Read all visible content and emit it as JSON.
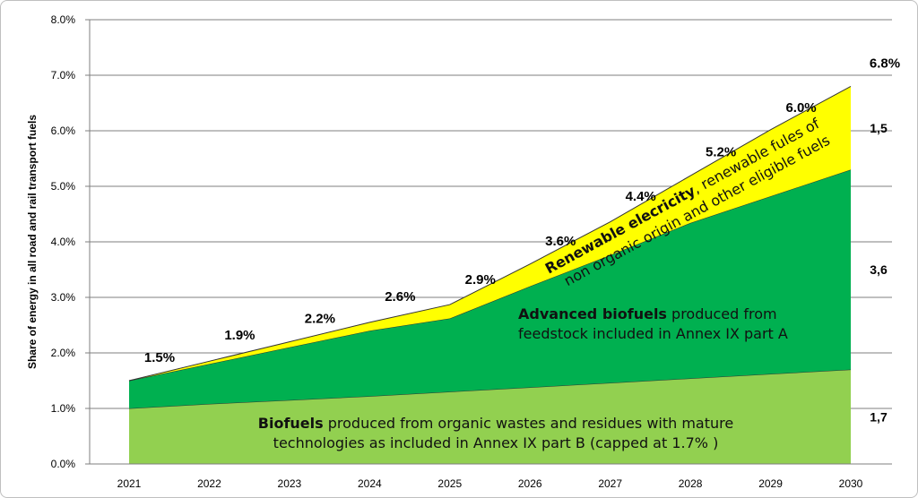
{
  "chart_data": {
    "type": "area",
    "stacked": true,
    "ylabel": "Share of energy in all road and rail transport fuels",
    "ylim": [
      0,
      8
    ],
    "y_ticks": [
      "0.0%",
      "1.0%",
      "2.0%",
      "3.0%",
      "4.0%",
      "5.0%",
      "6.0%",
      "7.0%",
      "8.0%"
    ],
    "categories": [
      "2021",
      "2022",
      "2023",
      "2024",
      "2025",
      "2026",
      "2027",
      "2028",
      "2029",
      "2030"
    ],
    "series": [
      {
        "key": "biofuels",
        "color": "#92d050",
        "values": [
          1.0,
          1.08,
          1.15,
          1.22,
          1.3,
          1.38,
          1.46,
          1.54,
          1.62,
          1.7
        ]
      },
      {
        "key": "advanced",
        "color": "#00b050",
        "values": [
          0.5,
          0.72,
          0.95,
          1.18,
          1.32,
          1.82,
          2.3,
          2.8,
          3.2,
          3.6
        ]
      },
      {
        "key": "electricity",
        "color": "#ffff00",
        "values": [
          0.0,
          0.05,
          0.1,
          0.15,
          0.25,
          0.4,
          0.6,
          0.85,
          1.2,
          1.5
        ]
      }
    ],
    "totals": [
      {
        "category": "2021",
        "value": 1.5,
        "label": "1.5%"
      },
      {
        "category": "2022",
        "value": 1.9,
        "label": "1.9%"
      },
      {
        "category": "2023",
        "value": 2.2,
        "label": "2.2%"
      },
      {
        "category": "2024",
        "value": 2.6,
        "label": "2.6%"
      },
      {
        "category": "2025",
        "value": 2.9,
        "label": "2.9%"
      },
      {
        "category": "2026",
        "value": 3.6,
        "label": "3.6%"
      },
      {
        "category": "2027",
        "value": 4.4,
        "label": "4.4%"
      },
      {
        "category": "2028",
        "value": 5.2,
        "label": "5.2%"
      },
      {
        "category": "2029",
        "value": 6.0,
        "label": "6.0%"
      },
      {
        "category": "2030",
        "value": 6.8,
        "label": "6.8%"
      }
    ],
    "component_labels_2030": [
      {
        "key": "electricity",
        "text": "1,5"
      },
      {
        "key": "advanced",
        "text": "3,6"
      },
      {
        "key": "biofuels",
        "text": "1,7"
      }
    ],
    "area_labels": {
      "biofuels": {
        "bold": "Biofuels",
        "rest": " produced from organic wastes and residues with mature",
        "line2": "technologies as included  in  Annex IX part B (capped at 1.7% )"
      },
      "advanced": {
        "bold": "Advanced biofuels",
        "rest": " produced from",
        "line2": "feedstock included in  Annex IX part A"
      },
      "electricity": {
        "bold": "Renewable elecricity",
        "rest": ", renewable fules of",
        "line2": "non organic origin and other eligible fuels"
      }
    },
    "grid": true
  }
}
